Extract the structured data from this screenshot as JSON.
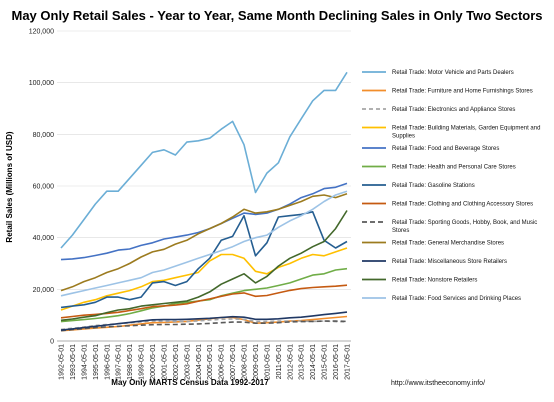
{
  "chart_data": {
    "type": "line",
    "title": "May Only Retail Sales - Year to Year, Same Month Declining Sales in Only Two Sectors",
    "xlabel": "May Only MARTS Census Data 1992-2017",
    "ylabel": "Retail Sales (Millions of USD)",
    "source_url": "http://www.itstheeconomy.info/",
    "ylim": [
      0,
      120000
    ],
    "yticks": [
      "0",
      "20,000",
      "40,000",
      "60,000",
      "80,000",
      "100,000",
      "120,000"
    ],
    "grid": true,
    "legend_position": "right",
    "x": [
      "1992-05-01",
      "1993-05-01",
      "1994-05-01",
      "1995-05-01",
      "1996-05-01",
      "1997-05-01",
      "1998-05-01",
      "1999-05-01",
      "2000-05-01",
      "2001-05-01",
      "2002-05-01",
      "2003-05-01",
      "2004-05-01",
      "2005-05-01",
      "2006-05-01",
      "2007-05-01",
      "2008-05-01",
      "2009-05-01",
      "2010-05-01",
      "2011-05-01",
      "2012-05-01",
      "2013-05-01",
      "2014-05-01",
      "2015-05-01",
      "2016-05-01",
      "2017-05-01"
    ],
    "series": [
      {
        "name": "Retail Trade: Motor Vehicle and Parts Dealers",
        "color": "#6baed6",
        "dash": "",
        "values": [
          36000,
          41000,
          47000,
          53000,
          58000,
          58000,
          63000,
          68000,
          73000,
          74000,
          72000,
          77000,
          77500,
          78500,
          82000,
          85000,
          76000,
          57500,
          65000,
          69000,
          79000,
          86000,
          93000,
          97000,
          97000,
          104000
        ]
      },
      {
        "name": "Retail Trade: Furniture and Home Furnishings Stores",
        "color": "#f28e2b",
        "dash": "",
        "values": [
          4000,
          4300,
          4700,
          5000,
          5300,
          5600,
          6100,
          6600,
          7100,
          7200,
          7400,
          7600,
          8100,
          8600,
          9100,
          9100,
          8300,
          6900,
          7100,
          7300,
          7700,
          7900,
          8300,
          8700,
          9100,
          9500
        ]
      },
      {
        "name": "Retail Trade: Electronics and Appliance Stores",
        "color": "#a6a6a6",
        "dash": "4,3",
        "values": [
          4500,
          4900,
          5400,
          6000,
          6400,
          6700,
          7000,
          7400,
          7800,
          7600,
          7600,
          7500,
          7800,
          8100,
          8400,
          8500,
          8400,
          7600,
          7600,
          7700,
          7700,
          7700,
          7600,
          7700,
          7500,
          7400
        ]
      },
      {
        "name": "Retail Trade: Building Materials, Garden Equipment and Supplies",
        "color": "#ffc000",
        "dash": "",
        "values": [
          12000,
          13500,
          15000,
          16000,
          17500,
          18500,
          19500,
          21000,
          23000,
          23500,
          24500,
          25500,
          26500,
          31000,
          33500,
          33500,
          32000,
          27000,
          26000,
          28500,
          30000,
          32000,
          33500,
          33000,
          34500,
          36000
        ]
      },
      {
        "name": "Retail Trade: Food and Beverage Stores",
        "color": "#4472c4",
        "dash": "",
        "values": [
          31500,
          31800,
          32300,
          33100,
          34000,
          35200,
          35600,
          37000,
          38000,
          39500,
          40200,
          41000,
          42000,
          43500,
          45500,
          47500,
          49500,
          49000,
          49500,
          51000,
          53000,
          55500,
          57000,
          59000,
          59500,
          61000
        ]
      },
      {
        "name": "Retail Trade: Health and Personal Care Stores",
        "color": "#70ad47",
        "dash": "",
        "values": [
          7500,
          7900,
          8300,
          8700,
          9200,
          9800,
          10600,
          11700,
          12800,
          13500,
          14500,
          15000,
          15500,
          16000,
          17500,
          18500,
          19500,
          20000,
          20500,
          21500,
          22500,
          24000,
          25500,
          26000,
          27500,
          28000
        ]
      },
      {
        "name": "Retail Trade: Gasoline Stations",
        "color": "#255e91",
        "dash": "",
        "values": [
          13000,
          13500,
          14000,
          15000,
          17000,
          17000,
          16000,
          17000,
          22500,
          23000,
          21500,
          23000,
          28000,
          32000,
          39000,
          40500,
          48500,
          33000,
          38000,
          48000,
          48500,
          49000,
          50000,
          39000,
          36000,
          38500
        ]
      },
      {
        "name": "Retail Trade: Clothing and Clothing Accessory Stores",
        "color": "#c55a11",
        "dash": "",
        "values": [
          9000,
          9500,
          10000,
          10300,
          10700,
          11100,
          11800,
          12500,
          13300,
          13600,
          13900,
          14400,
          15400,
          16300,
          17300,
          18200,
          18600,
          17300,
          17600,
          18600,
          19600,
          20300,
          20700,
          21000,
          21200,
          21600
        ]
      },
      {
        "name": "Retail Trade: Sporting Goods, Hobby, Book, and Music Stores",
        "color": "#595959",
        "dash": "5,3",
        "values": [
          4000,
          4400,
          4800,
          5200,
          5500,
          5700,
          5900,
          6100,
          6300,
          6400,
          6400,
          6500,
          6600,
          6800,
          7100,
          7300,
          7300,
          6900,
          6900,
          7100,
          7400,
          7500,
          7600,
          7700,
          7700,
          7600
        ]
      },
      {
        "name": "Retail Trade: General Merchandise Stores",
        "color": "#9c7b1f",
        "dash": "",
        "values": [
          19500,
          21000,
          23000,
          24500,
          26500,
          28000,
          30000,
          32500,
          34500,
          35500,
          37500,
          39000,
          41500,
          43500,
          45500,
          48000,
          51000,
          49500,
          50000,
          51000,
          52500,
          54000,
          56000,
          56500,
          55500,
          57000
        ]
      },
      {
        "name": "Retail Trade: Miscellaneous Store Retailers",
        "color": "#203864",
        "dash": "",
        "values": [
          4200,
          4700,
          5200,
          5700,
          6200,
          6700,
          7200,
          7700,
          8200,
          8300,
          8300,
          8400,
          8600,
          8800,
          9100,
          9400,
          9200,
          8400,
          8400,
          8600,
          9000,
          9200,
          9700,
          10200,
          10700,
          11200
        ]
      },
      {
        "name": "Retail Trade: Nonstore Retailers",
        "color": "#43682b",
        "dash": "",
        "values": [
          8000,
          8500,
          9200,
          9800,
          11000,
          12000,
          12500,
          13500,
          14000,
          14500,
          15000,
          15500,
          17000,
          19000,
          22000,
          24000,
          26000,
          22500,
          25000,
          29000,
          32000,
          34000,
          36500,
          38500,
          43500,
          50500
        ]
      },
      {
        "name": "Retail Trade: Food Services and Drinking Places",
        "color": "#9dc3e6",
        "dash": "",
        "values": [
          17500,
          18500,
          19500,
          20500,
          21500,
          22500,
          23500,
          24500,
          26500,
          27500,
          29000,
          30500,
          32000,
          33500,
          35000,
          36500,
          38500,
          40000,
          41000,
          44000,
          46500,
          48500,
          51000,
          54000,
          56500,
          58000
        ]
      }
    ]
  }
}
